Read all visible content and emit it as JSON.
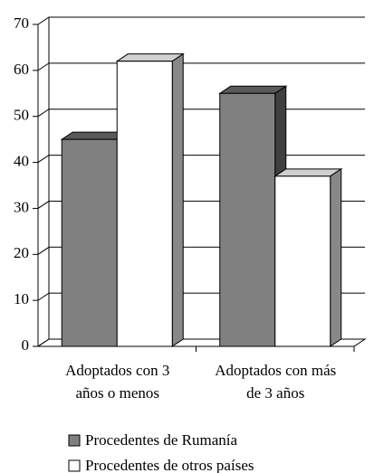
{
  "chart_data": {
    "type": "bar3d",
    "categories": [
      "Adoptados con 3 años o menos",
      "Adoptados con más de 3 años"
    ],
    "series": [
      {
        "name": "Procedentes de Rumanía",
        "color": "#808080",
        "values": [
          45,
          55
        ]
      },
      {
        "name": "Procedentes de otros países",
        "color": "#ffffff",
        "values": [
          62,
          37
        ]
      }
    ],
    "ylim": [
      0,
      70
    ],
    "yticks": [
      0,
      10,
      20,
      30,
      40,
      50,
      60,
      70
    ],
    "grid": true,
    "legend": "bottom"
  }
}
